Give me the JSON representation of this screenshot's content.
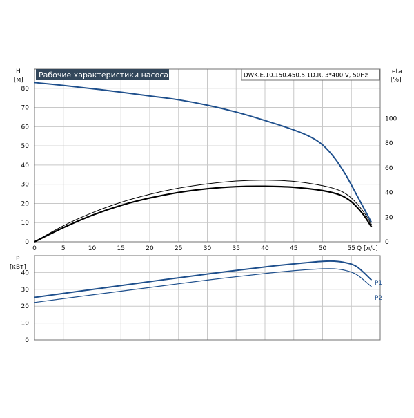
{
  "chart_data": [
    {
      "type": "line",
      "title": "Рабочие характеристики насоса",
      "model_label": "DWK.E.10.150.450.5.1D.R, 3*400 V, 50Hz",
      "xlabel": "Q [л/с]",
      "ylabel_left": "H",
      "ylabel_left_unit": "[м]",
      "ylabel_right": "eta",
      "ylabel_right_unit": "[%]",
      "xlim": [
        0,
        60
      ],
      "ylim_left": [
        0,
        90
      ],
      "ylim_right": [
        0,
        140
      ],
      "x_ticks": [
        "0",
        "5",
        "10",
        "15",
        "20",
        "25",
        "30",
        "35",
        "40",
        "45",
        "50",
        "55"
      ],
      "y_ticks_left": [
        "0",
        "10",
        "20",
        "30",
        "40",
        "50",
        "60",
        "70",
        "80"
      ],
      "y_ticks_right": [
        "0",
        "20",
        "40",
        "60",
        "80",
        "100"
      ],
      "grid": true,
      "colors": {
        "head": "#1e4f8c",
        "efficiency": "#000000",
        "title_bg": "#33475b"
      },
      "series": [
        {
          "id": "head",
          "axis": "left",
          "x": [
            0,
            5,
            10,
            15,
            20,
            25,
            30,
            35,
            40,
            45,
            48,
            50,
            52,
            54,
            56,
            58.5
          ],
          "values": [
            83,
            81.5,
            79.8,
            78,
            76,
            74,
            71.2,
            67.6,
            63.2,
            58.3,
            54.5,
            50.5,
            44,
            35,
            24,
            10
          ]
        },
        {
          "id": "efficiency-upper",
          "axis": "right",
          "x": [
            0,
            5,
            10,
            15,
            20,
            25,
            30,
            35,
            40,
            45,
            50,
            53,
            55,
            57,
            58.5
          ],
          "values": [
            0,
            13,
            23.5,
            32,
            38.5,
            43.5,
            47,
            49.3,
            50,
            49,
            45.5,
            41.5,
            35.5,
            25,
            14
          ]
        },
        {
          "id": "efficiency-lower",
          "axis": "right",
          "x": [
            0,
            5,
            10,
            15,
            20,
            25,
            30,
            35,
            40,
            45,
            50,
            53,
            55,
            57,
            58.5
          ],
          "values": [
            0,
            11.5,
            21.5,
            29.5,
            35.5,
            40,
            43,
            44.7,
            45,
            44.2,
            41.5,
            38,
            32.5,
            22.5,
            12
          ]
        }
      ]
    },
    {
      "type": "line",
      "ylabel": "P",
      "ylabel_unit": "[кВт]",
      "xlim": [
        0,
        60
      ],
      "ylim": [
        0,
        50
      ],
      "y_ticks": [
        "0",
        "10",
        "20",
        "30",
        "40"
      ],
      "grid": true,
      "series": [
        {
          "name": "P1",
          "color": "#1e4f8c",
          "width": 2,
          "x": [
            0,
            10,
            20,
            30,
            40,
            45,
            50,
            52,
            54,
            56,
            58.5
          ],
          "values": [
            25.2,
            29.9,
            34.6,
            39.1,
            43.3,
            45.1,
            46.6,
            46.7,
            45.8,
            43.3,
            35.5
          ]
        },
        {
          "name": "P2",
          "color": "#1e4f8c",
          "width": 1.2,
          "x": [
            0,
            10,
            20,
            30,
            40,
            45,
            50,
            52,
            54,
            56,
            58.5
          ],
          "values": [
            22.2,
            26.7,
            31.1,
            35.5,
            39.4,
            41.1,
            42.2,
            42.2,
            41.2,
            38.6,
            31.5
          ]
        }
      ]
    }
  ]
}
